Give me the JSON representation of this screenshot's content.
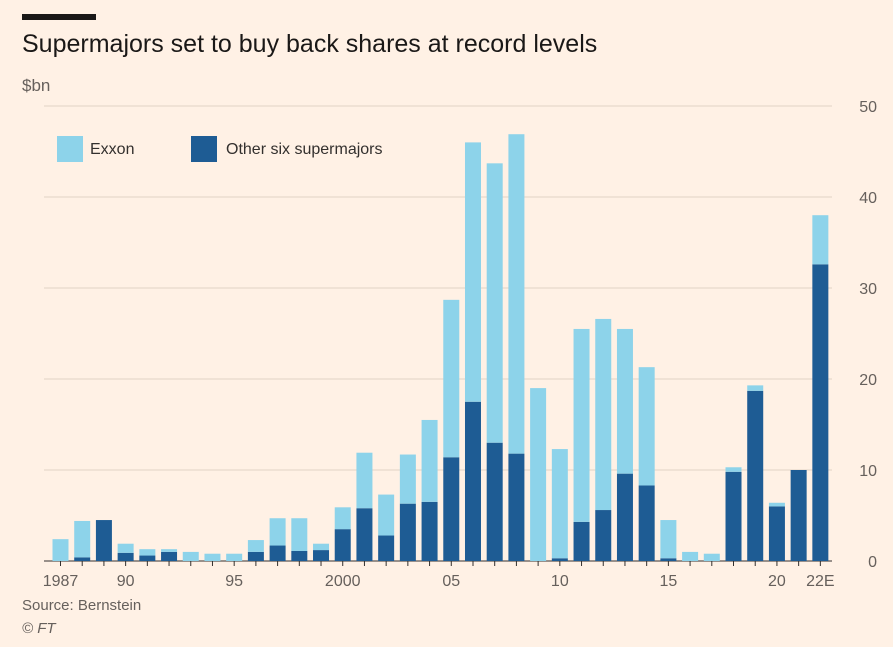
{
  "header": {
    "title": "Supermajors set to buy back shares at record levels",
    "unit": "$bn"
  },
  "footer": {
    "source": "Source: Bernstein",
    "copyright": "© FT"
  },
  "colors": {
    "background": "#FFF1E5",
    "exxon": "#8DD3EA",
    "others": "#1E5C94",
    "grid": "#E0D2C5",
    "axis_text": "#66605C"
  },
  "chart_data": {
    "type": "bar",
    "stacked": true,
    "title": "Supermajors set to buy back shares at record levels",
    "ylabel": "$bn",
    "ylim": [
      0,
      50
    ],
    "yticks": [
      0,
      10,
      20,
      30,
      40,
      50
    ],
    "y_axis_side": "right",
    "grid": true,
    "legend_position": "top-left",
    "categories": [
      "1987",
      "1988",
      "1989",
      "1990",
      "1991",
      "1992",
      "1993",
      "1994",
      "1995",
      "1996",
      "1997",
      "1998",
      "1999",
      "2000",
      "2001",
      "2002",
      "2003",
      "2004",
      "2005",
      "2006",
      "2007",
      "2008",
      "2009",
      "2010",
      "2011",
      "2012",
      "2013",
      "2014",
      "2015",
      "2016",
      "2017",
      "2018",
      "2019",
      "2020",
      "2021",
      "2022E"
    ],
    "tick_labels": [
      {
        "index": 0,
        "label": "1987"
      },
      {
        "index": 3,
        "label": "90"
      },
      {
        "index": 8,
        "label": "95"
      },
      {
        "index": 13,
        "label": "2000"
      },
      {
        "index": 18,
        "label": "05"
      },
      {
        "index": 23,
        "label": "10"
      },
      {
        "index": 28,
        "label": "15"
      },
      {
        "index": 33,
        "label": "20"
      },
      {
        "index": 35,
        "label": "22E"
      }
    ],
    "series": [
      {
        "name": "Other six supermajors",
        "values": [
          0,
          0.4,
          4.5,
          0.9,
          0.6,
          1.0,
          0,
          0,
          0,
          1.0,
          1.7,
          1.1,
          1.2,
          3.5,
          5.8,
          2.8,
          6.3,
          6.5,
          11.4,
          17.5,
          13.0,
          11.8,
          0,
          0.3,
          4.3,
          5.6,
          9.6,
          8.3,
          0.3,
          0,
          0,
          9.8,
          18.7,
          6.0,
          10.0,
          32.6
        ]
      },
      {
        "name": "Exxon",
        "values": [
          2.4,
          4.0,
          0,
          1.0,
          0.7,
          0.3,
          1.0,
          0.8,
          0.8,
          1.3,
          3.0,
          3.6,
          0.7,
          2.4,
          6.1,
          4.5,
          5.4,
          9.0,
          17.3,
          28.5,
          30.7,
          35.1,
          19.0,
          12.0,
          21.2,
          21.0,
          15.9,
          13.0,
          4.2,
          1.0,
          0.8,
          0.5,
          0.6,
          0.4,
          0,
          5.4
        ]
      }
    ]
  }
}
